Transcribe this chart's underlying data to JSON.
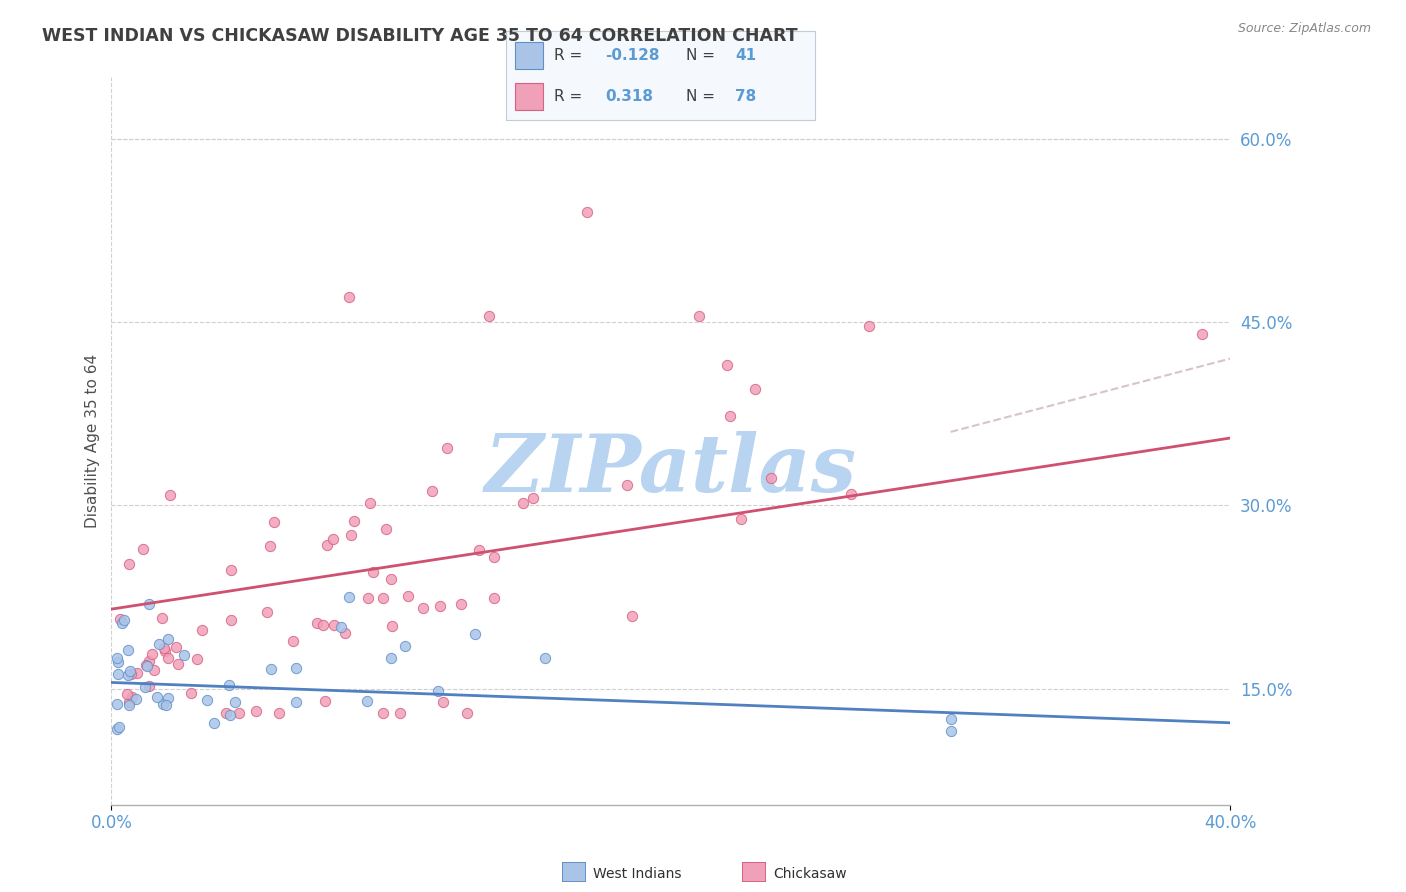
{
  "title": "WEST INDIAN VS CHICKASAW DISABILITY AGE 35 TO 64 CORRELATION CHART",
  "source": "Source: ZipAtlas.com",
  "ylabel": "Disability Age 35 to 64",
  "watermark": "ZIPatlas",
  "xlim": [
    0.0,
    0.4
  ],
  "ylim": [
    0.055,
    0.65
  ],
  "yticks_right": [
    0.15,
    0.3,
    0.45,
    0.6
  ],
  "west_indian_R": -0.128,
  "west_indian_N": 41,
  "chickasaw_R": 0.318,
  "chickasaw_N": 78,
  "west_indian_color": "#aac4e8",
  "chickasaw_color": "#f0a0b8",
  "west_indian_edge": "#6090c8",
  "chickasaw_edge": "#d86080",
  "west_indian_line": "#5080c0",
  "chickasaw_line": "#d05070",
  "background_color": "#ffffff",
  "grid_color": "#d0d0d0",
  "title_color": "#404040",
  "watermark_color": "#b8d4f0",
  "legend_box_color": "#e8f0f8",
  "legend_border": "#c0c8d8"
}
